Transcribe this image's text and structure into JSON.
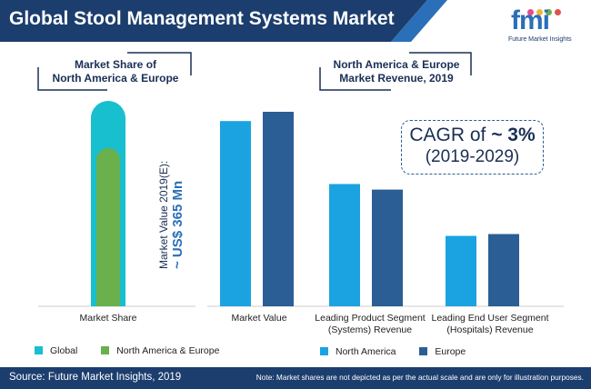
{
  "header": {
    "title": "Global Stool Management Systems Market"
  },
  "logo": {
    "mark": "fmi",
    "text": "Future Market Insights"
  },
  "left_panel": {
    "label_line1": "Market Share of",
    "label_line2": "North America & Europe",
    "value_line1": "Market Value 2019(E):",
    "value_line2": "~ US$ 365 Mn"
  },
  "right_panel": {
    "label_line1": "North America & Europe",
    "label_line2": "Market Revenue, 2019",
    "cagr_prefix": "CAGR of",
    "cagr_value": "~ 3%",
    "cagr_period": "(2019-2029)"
  },
  "colors": {
    "global": "#17bfcf",
    "north_america_europe": "#6ab04c",
    "north_america": "#1aa3e0",
    "europe": "#2b5e94",
    "header_bg": "#1c3e6e",
    "footer_bg": "#1c3e6e"
  },
  "chart_data": [
    {
      "type": "bar",
      "categories": [
        "Market Share"
      ],
      "series": [
        {
          "name": "Global",
          "values": [
            100
          ]
        },
        {
          "name": "North America & Europe",
          "values": [
            77
          ]
        }
      ],
      "legend": [
        "Global",
        "North America & Europe"
      ],
      "legend_position": "bottom-left",
      "grid": false
    },
    {
      "type": "bar",
      "categories": [
        "Market Value",
        "Leading Product Segment (Systems) Revenue",
        "Leading End User Segment (Hospitals) Revenue"
      ],
      "category_lines": [
        [
          "Market Value"
        ],
        [
          "Leading Product Segment",
          "(Systems) Revenue"
        ],
        [
          "Leading End User Segment",
          "(Hospitals) Revenue"
        ]
      ],
      "series": [
        {
          "name": "North America",
          "values": [
            100,
            66,
            38
          ]
        },
        {
          "name": "Europe",
          "values": [
            105,
            63,
            39
          ]
        }
      ],
      "legend": [
        "North America",
        "Europe"
      ],
      "legend_position": "bottom",
      "grid": false
    }
  ],
  "footer": {
    "source": "Source: Future Market Insights, 2019",
    "note": "Note: Market shares are not depicted as per the actual scale and are only for illustration purposes."
  }
}
